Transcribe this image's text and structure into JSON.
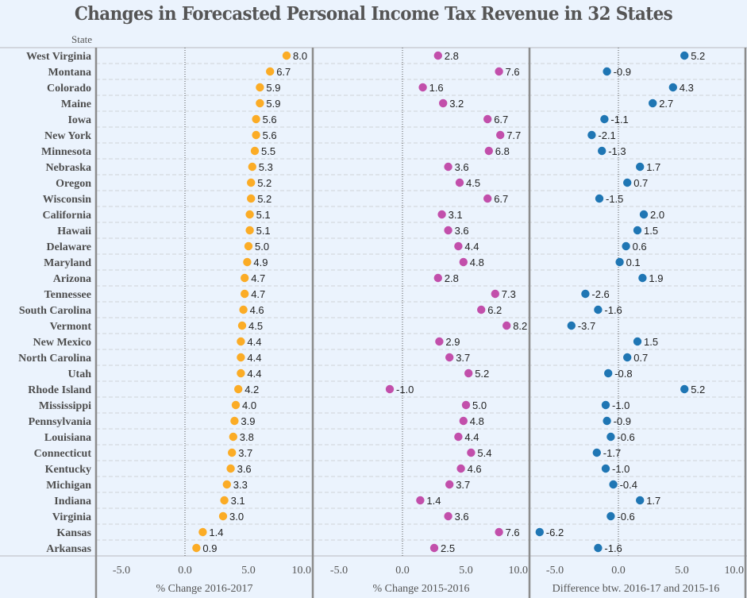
{
  "chart_data": {
    "type": "scatter",
    "title": "Changes in Forecasted Personal Income Tax Revenue in 32 States",
    "row_header": "State",
    "categories": [
      "West Virginia",
      "Montana",
      "Colorado",
      "Maine",
      "Iowa",
      "New York",
      "Minnesota",
      "Nebraska",
      "Oregon",
      "Wisconsin",
      "California",
      "Hawaii",
      "Delaware",
      "Maryland",
      "Arizona",
      "Tennessee",
      "South Carolina",
      "Vermont",
      "New Mexico",
      "North Carolina",
      "Utah",
      "Rhode Island",
      "Mississippi",
      "Pennsylvania",
      "Louisiana",
      "Connecticut",
      "Kentucky",
      "Michigan",
      "Indiana",
      "Virginia",
      "Kansas",
      "Arkansas"
    ],
    "series": [
      {
        "name": "% Change 2016-2017",
        "xlabel": "% Change 2016-2017",
        "color": "#fbac26",
        "xlim": [
          -7,
          10.1
        ],
        "ticks": [
          -5.0,
          0.0,
          5.0,
          10.0
        ],
        "tick_labels": [
          "-5.0",
          "0.0",
          "5.0",
          "10.0"
        ],
        "values": [
          8.0,
          6.7,
          5.9,
          5.9,
          5.6,
          5.6,
          5.5,
          5.3,
          5.2,
          5.2,
          5.1,
          5.1,
          5.0,
          4.9,
          4.7,
          4.7,
          4.6,
          4.5,
          4.4,
          4.4,
          4.4,
          4.2,
          4.0,
          3.9,
          3.8,
          3.7,
          3.6,
          3.3,
          3.1,
          3.0,
          1.4,
          0.9
        ],
        "labels": [
          "8.0",
          "6.7",
          "5.9",
          "5.9",
          "5.6",
          "5.6",
          "5.5",
          "5.3",
          "5.2",
          "5.2",
          "5.1",
          "5.1",
          "5.0",
          "4.9",
          "4.7",
          "4.7",
          "4.6",
          "4.5",
          "4.4",
          "4.4",
          "4.4",
          "4.2",
          "4.0",
          "3.9",
          "3.8",
          "3.7",
          "3.6",
          "3.3",
          "3.1",
          "3.0",
          "1.4",
          "0.9"
        ]
      },
      {
        "name": "% Change 2015-2016",
        "xlabel": "% Change 2015-2016",
        "color": "#c24fab",
        "xlim": [
          -7,
          10.0
        ],
        "ticks": [
          -5.0,
          0.0,
          5.0,
          10.0
        ],
        "tick_labels": [
          "-5.0",
          "0.0",
          "5.0",
          "10.0"
        ],
        "values": [
          2.8,
          7.6,
          1.6,
          3.2,
          6.7,
          7.7,
          6.8,
          3.6,
          4.5,
          6.7,
          3.1,
          3.6,
          4.4,
          4.8,
          2.8,
          7.3,
          6.2,
          8.2,
          2.9,
          3.7,
          5.2,
          -1.0,
          5.0,
          4.8,
          4.4,
          5.4,
          4.6,
          3.7,
          1.4,
          3.6,
          7.6,
          2.5
        ],
        "labels": [
          "2.8",
          "7.6",
          "1.6",
          "3.2",
          "6.7",
          "7.7",
          "6.8",
          "3.6",
          "4.5",
          "6.7",
          "3.1",
          "3.6",
          "4.4",
          "4.8",
          "2.8",
          "7.3",
          "6.2",
          "8.2",
          "2.9",
          "3.7",
          "5.2",
          "-1.0",
          "5.0",
          "4.8",
          "4.4",
          "5.4",
          "4.6",
          "3.7",
          "1.4",
          "3.6",
          "7.6",
          "2.5"
        ]
      },
      {
        "name": "Difference btw. 2016-17 and 2015-16",
        "xlabel": "Difference btw. 2016-17 and 2015-16",
        "color": "#1f76b4",
        "xlim": [
          -7,
          10.0
        ],
        "ticks": [
          -5.0,
          0.0,
          5.0,
          10.0
        ],
        "tick_labels": [
          "-5.0",
          "0.0",
          "5.0",
          "10.0"
        ],
        "values": [
          5.2,
          -0.9,
          4.3,
          2.7,
          -1.1,
          -2.1,
          -1.3,
          1.7,
          0.7,
          -1.5,
          2.0,
          1.5,
          0.6,
          0.1,
          1.9,
          -2.6,
          -1.6,
          -3.7,
          1.5,
          0.7,
          -0.8,
          5.2,
          -1.0,
          -0.9,
          -0.6,
          -1.7,
          -1.0,
          -0.4,
          1.7,
          -0.6,
          -6.2,
          -1.6
        ],
        "labels": [
          "5.2",
          "-0.9",
          "4.3",
          "2.7",
          "-1.1",
          "-2.1",
          "-1.3",
          "1.7",
          "0.7",
          "-1.5",
          "2.0",
          "1.5",
          "0.6",
          "0.1",
          "1.9",
          "-2.6",
          "-1.6",
          "-3.7",
          "1.5",
          "0.7",
          "-0.8",
          "5.2",
          "-1.0",
          "-0.9",
          "-0.6",
          "-1.7",
          "-1.0",
          "-0.4",
          "1.7",
          "-0.6",
          "-6.2",
          "-1.6"
        ]
      }
    ],
    "grid": "horizontal dashed row separators, dotted zero reference line",
    "legend": "none"
  }
}
